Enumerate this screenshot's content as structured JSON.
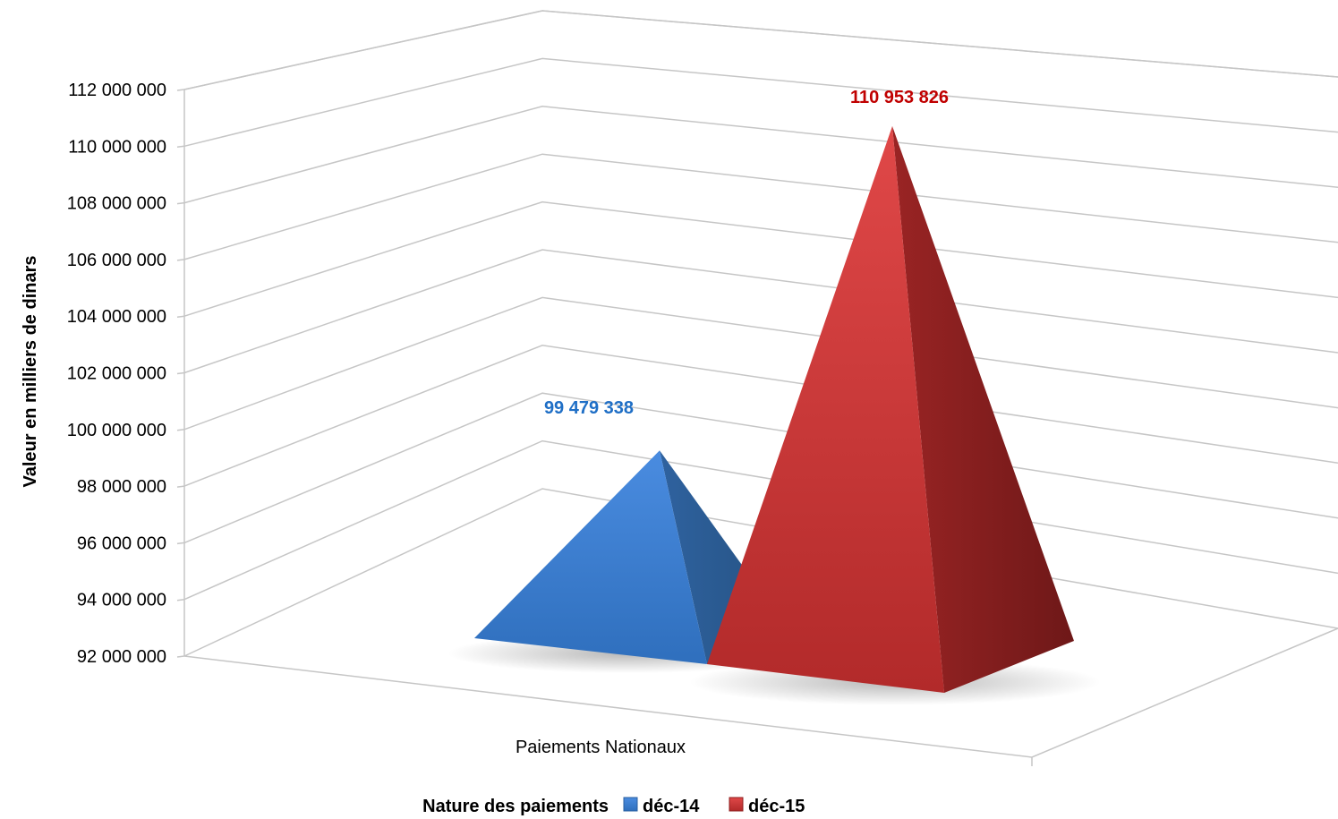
{
  "chart_data": {
    "type": "3d-pyramid-column",
    "categories": [
      "Paiements Nationaux"
    ],
    "series": [
      {
        "name": "déc-14",
        "values": [
          99479338
        ],
        "label": "99 479 338",
        "color": "#3d7fd4"
      },
      {
        "name": "déc-15",
        "values": [
          110953826
        ],
        "label": "110 953 826",
        "color": "#c0282a"
      }
    ],
    "ylabel": "Valeur en milliers de dinars",
    "xlabel": "",
    "legend_title": "Nature des paiements",
    "legend_position": "bottom",
    "ylim": [
      92000000,
      112000000
    ],
    "yticks": [
      "92 000 000",
      "94 000 000",
      "96 000 000",
      "98 000 000",
      "100 000 000",
      "102 000 000",
      "104 000 000",
      "106 000 000",
      "108 000 000",
      "110 000 000",
      "112 000 000"
    ],
    "grid": true
  }
}
